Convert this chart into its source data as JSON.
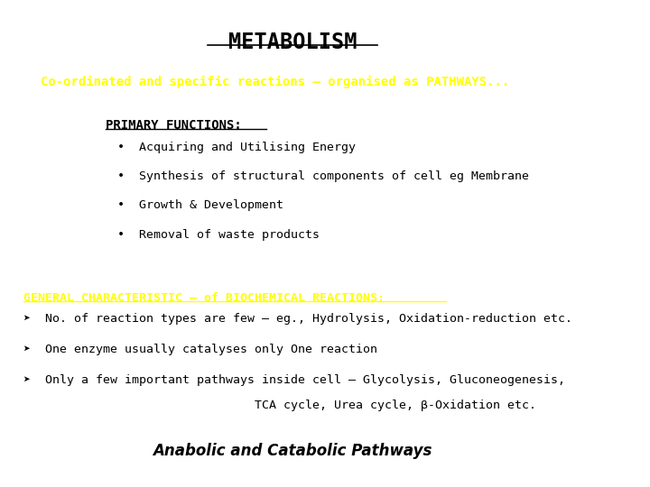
{
  "title": "METABOLISM",
  "subtitle": "Co-ordinated and specific reactions – organised as PATHWAYS...",
  "primary_functions_header": "PRIMARY FUNCTIONS:",
  "bullet_points": [
    "Acquiring and Utilising Energy",
    "Synthesis of structural components of cell eg Membrane",
    "Growth & Development",
    "Removal of waste products"
  ],
  "general_header": "GENERAL CHARACTERISTIC – of BIOCHEMICAL REACTIONS:",
  "arrow_points": [
    "No. of reaction types are few – eg., Hydrolysis, Oxidation-reduction etc.",
    "One enzyme usually catalyses only One reaction",
    "Only a few important pathways inside cell – Glycolysis, Gluconeogenesis,"
  ],
  "continuation": "TCA cycle, Urea cycle, β-Oxidation etc.",
  "footer": "Anabolic and Catabolic Pathways",
  "bg_color": "#ffffff",
  "title_color": "#000000",
  "subtitle_color": "#ffff00",
  "primary_header_color": "#000000",
  "bullet_color": "#000000",
  "general_header_color": "#ffff00",
  "arrow_text_color": "#000000",
  "footer_color": "#000000"
}
